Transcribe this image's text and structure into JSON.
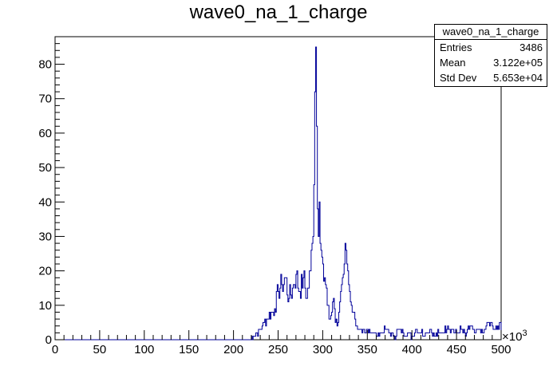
{
  "chart_data": {
    "type": "histogram",
    "title": "wave0_na_1_charge",
    "xlabel": "",
    "ylabel": "",
    "x_multiplier_label": "×10",
    "x_multiplier_exp": "3",
    "xlim": [
      0,
      500
    ],
    "ylim": [
      0,
      88
    ],
    "x_ticks": [
      0,
      50,
      100,
      150,
      200,
      250,
      300,
      350,
      400,
      450,
      500
    ],
    "y_ticks": [
      0,
      10,
      20,
      30,
      40,
      50,
      60,
      70,
      80
    ],
    "bin_width": 1,
    "x": [
      218,
      222,
      226,
      230,
      234,
      238,
      242,
      246,
      250,
      254,
      258,
      262,
      266,
      270,
      274,
      278,
      282,
      286,
      288,
      290,
      291,
      292,
      293,
      294,
      295,
      296,
      297,
      298,
      299,
      300,
      302,
      304,
      306,
      308,
      310,
      312,
      314,
      316,
      318,
      320,
      322,
      324,
      326,
      328,
      330,
      332,
      334,
      336,
      338,
      340,
      344,
      348,
      352,
      356,
      360,
      365,
      370,
      375,
      380,
      385,
      390,
      395,
      400,
      405,
      410,
      415,
      420,
      425,
      430,
      435,
      440,
      445,
      450,
      455,
      460,
      465,
      470,
      475,
      480,
      485,
      490,
      495,
      499
    ],
    "values": [
      0,
      1,
      2,
      3,
      5,
      6,
      8,
      9,
      14,
      16,
      18,
      12,
      15,
      19,
      14,
      18,
      12,
      20,
      28,
      45,
      72,
      85,
      62,
      38,
      30,
      40,
      28,
      26,
      24,
      22,
      18,
      15,
      10,
      6,
      8,
      12,
      5,
      4,
      8,
      14,
      18,
      22,
      26,
      20,
      14,
      10,
      8,
      6,
      4,
      3,
      2,
      2,
      3,
      2,
      1,
      2,
      3,
      2,
      1,
      3,
      2,
      2,
      1,
      3,
      2,
      2,
      3,
      1,
      2,
      2,
      4,
      3,
      2,
      3,
      1,
      4,
      2,
      3,
      2,
      5,
      4,
      3,
      5
    ]
  },
  "stats": {
    "name": "wave0_na_1_charge",
    "entries_label": "Entries",
    "entries": "3486",
    "mean_label": "Mean",
    "mean": "3.122e+05",
    "stddev_label": "Std Dev",
    "stddev": "5.653e+04"
  }
}
